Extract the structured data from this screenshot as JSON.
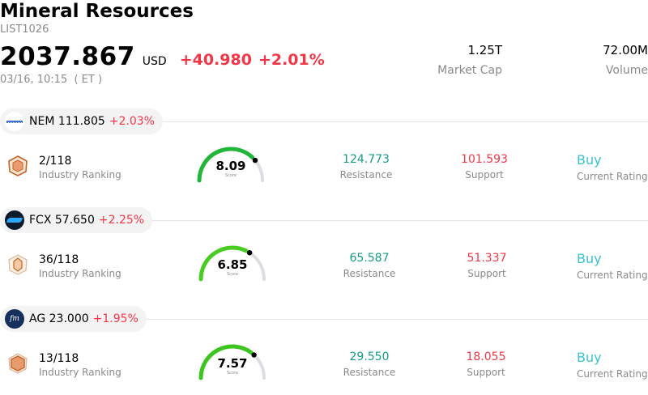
{
  "header": {
    "title": "Mineral Resources",
    "code": "LIST1026",
    "price": "2037.867",
    "currency": "USD",
    "change": "+40.980",
    "change_pct": "+2.01%",
    "time": "03/16, 10:15  ( ET )",
    "market_cap_value": "1.25T",
    "market_cap_label": "Market Cap",
    "volume_value": "72.00M",
    "volume_label": "Volume"
  },
  "colors": {
    "up": "#f23645",
    "resistance": "#149c84",
    "support": "#f23645",
    "rating": "#3bc3c8",
    "gauge_green": "#21b53a",
    "gauge_track": "#dcdce2"
  },
  "stocks": [
    {
      "logo_icon": "newmont-logo-icon",
      "ticker": "NEM",
      "price": "111.805",
      "change_pct": "+2.03%",
      "rank": "2/118",
      "rank_label": "Industry Ranking",
      "score": "8.09",
      "score_value": 8.09,
      "score_label": "Score",
      "resistance": "124.773",
      "resistance_label": "Resistance",
      "support": "101.593",
      "support_label": "Support",
      "rating": "Buy",
      "rating_label": "Current Rating"
    },
    {
      "logo_icon": "freeport-logo-icon",
      "ticker": "FCX",
      "price": "57.650",
      "change_pct": "+2.25%",
      "rank": "36/118",
      "rank_label": "Industry Ranking",
      "score": "6.85",
      "score_value": 6.85,
      "score_label": "Score",
      "resistance": "65.587",
      "resistance_label": "Resistance",
      "support": "51.337",
      "support_label": "Support",
      "rating": "Buy",
      "rating_label": "Current Rating"
    },
    {
      "logo_icon": "first-majestic-logo-icon",
      "ticker": "AG",
      "price": "23.000",
      "change_pct": "+1.95%",
      "rank": "13/118",
      "rank_label": "Industry Ranking",
      "score": "7.57",
      "score_value": 7.57,
      "score_label": "Score",
      "resistance": "29.550",
      "resistance_label": "Resistance",
      "support": "18.055",
      "support_label": "Support",
      "rating": "Buy",
      "rating_label": "Current Rating"
    }
  ]
}
